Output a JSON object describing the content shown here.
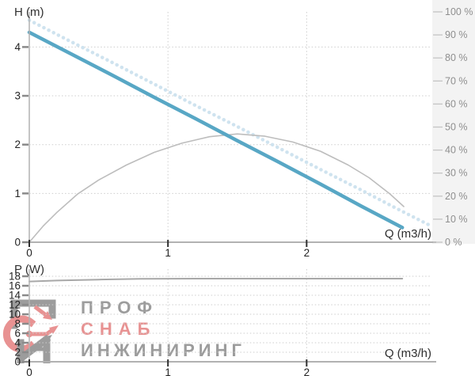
{
  "watermark": {
    "line1": "ПРОФ",
    "line2": "СНАБ",
    "line3": "ИНЖИНИРИНГ",
    "gray_color": "#9c9c9c",
    "red_color": "#e89292"
  },
  "chart_data": [
    {
      "id": "head-chart",
      "type": "line",
      "xlabel": "Q (m3/h)",
      "ylabel": "H (m)",
      "xlim": [
        0,
        2.9
      ],
      "ylim": [
        0,
        4.72
      ],
      "y2lim": [
        0,
        100
      ],
      "xticks": [
        0,
        1,
        2
      ],
      "yticks": [
        0,
        1,
        2,
        3,
        4
      ],
      "y2ticks": [
        0,
        10,
        20,
        30,
        40,
        50,
        60,
        70,
        80,
        90,
        100
      ],
      "y2tick_suffix": " %",
      "grid": true,
      "legend": "none",
      "series": [
        {
          "name": "head-curve-reference",
          "axis": "y",
          "style": "dotted",
          "color": "#cfe3ef",
          "width": 4.5,
          "points": [
            [
              0,
              4.55
            ],
            [
              0.3,
              4.11
            ],
            [
              0.6,
              3.68
            ],
            [
              0.9,
              3.24
            ],
            [
              1.2,
              2.8
            ],
            [
              1.5,
              2.37
            ],
            [
              1.8,
              1.93
            ],
            [
              2.1,
              1.49
            ],
            [
              2.4,
              1.06
            ],
            [
              2.65,
              0.69
            ],
            [
              2.9,
              0.33
            ]
          ]
        },
        {
          "name": "efficiency-curve",
          "axis": "y2",
          "style": "solid",
          "color": "#bdbdbd",
          "width": 1.6,
          "points": [
            [
              0,
              0
            ],
            [
              0.1,
              7
            ],
            [
              0.2,
              13
            ],
            [
              0.35,
              21
            ],
            [
              0.5,
              27
            ],
            [
              0.7,
              33.5
            ],
            [
              0.9,
              39
            ],
            [
              1.1,
              43
            ],
            [
              1.3,
              45.8
            ],
            [
              1.5,
              47
            ],
            [
              1.7,
              46
            ],
            [
              1.9,
              43.5
            ],
            [
              2.1,
              39.5
            ],
            [
              2.3,
              33.5
            ],
            [
              2.45,
              28
            ],
            [
              2.6,
              21
            ],
            [
              2.7,
              15.5
            ]
          ]
        },
        {
          "name": "head-curve",
          "axis": "y",
          "style": "solid",
          "color": "#58a7c5",
          "width": 4.5,
          "points": [
            [
              0,
              4.3
            ],
            [
              0.3,
              3.86
            ],
            [
              0.6,
              3.42
            ],
            [
              0.9,
              2.97
            ],
            [
              1.2,
              2.53
            ],
            [
              1.5,
              2.08
            ],
            [
              1.8,
              1.64
            ],
            [
              2.1,
              1.19
            ],
            [
              2.4,
              0.73
            ],
            [
              2.69,
              0.3
            ]
          ]
        }
      ]
    },
    {
      "id": "power-chart",
      "type": "line",
      "xlabel": "Q (m3/h)",
      "ylabel": "P (W)",
      "xlim": [
        0,
        2.9
      ],
      "ylim": [
        0,
        19.5
      ],
      "xticks": [
        0,
        1,
        2
      ],
      "yticks": [
        0,
        2,
        4,
        6,
        8,
        10,
        12,
        14,
        16,
        18
      ],
      "grid": true,
      "legend": "none",
      "series": [
        {
          "name": "power-curve",
          "axis": "y",
          "style": "solid",
          "color": "#a8a8a8",
          "width": 2,
          "points": [
            [
              0,
              16.9
            ],
            [
              0.2,
              17.1
            ],
            [
              0.5,
              17.3
            ],
            [
              0.8,
              17.45
            ],
            [
              1.2,
              17.5
            ],
            [
              1.6,
              17.5
            ],
            [
              2.0,
              17.5
            ],
            [
              2.4,
              17.5
            ],
            [
              2.69,
              17.5
            ]
          ]
        }
      ]
    }
  ]
}
